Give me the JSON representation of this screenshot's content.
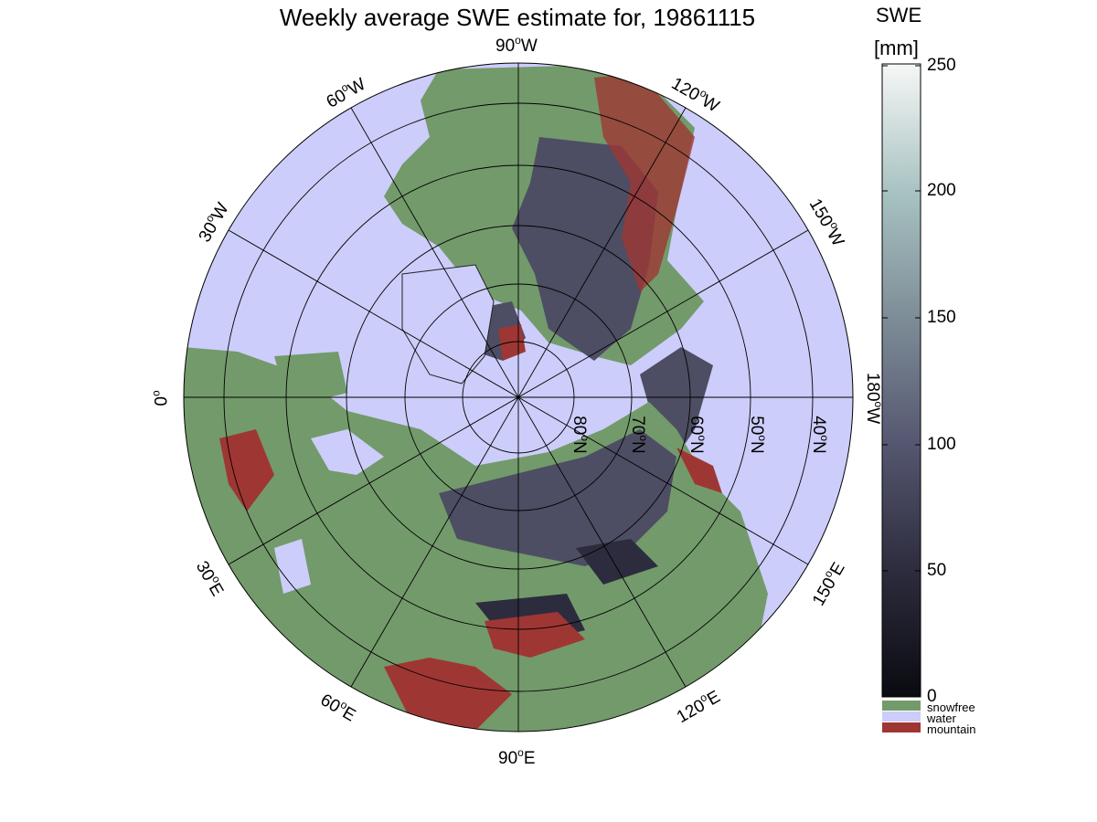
{
  "title": "Weekly average SWE estimate for, 19861115",
  "colorbar": {
    "label_line1": "SWE",
    "label_line2": "[mm]",
    "ticks": [
      "0",
      "50",
      "100",
      "150",
      "200",
      "250"
    ],
    "categories": [
      {
        "label": "snowfree",
        "color": "#739a6b"
      },
      {
        "label": "water",
        "color": "#cccdfa"
      },
      {
        "label": "mountain",
        "color": "#9e3733"
      }
    ],
    "scale_colors": [
      "#0a0a10",
      "#2d2c3e",
      "#555770",
      "#7e8d98",
      "#a9c3c2",
      "#f5f7f6"
    ]
  },
  "map": {
    "projection": "north polar stereographic",
    "longitude_labels": [
      "0",
      "30",
      "60",
      "90",
      "120",
      "150",
      "180",
      "150",
      "120",
      "90",
      "60",
      "30"
    ],
    "longitude_suffixes": [
      "",
      "E",
      "E",
      "E",
      "E",
      "E",
      "W",
      "W",
      "W",
      "W",
      "W",
      "W"
    ],
    "latitude_labels": [
      "80",
      "70",
      "60",
      "50",
      "40"
    ],
    "latitude_suffix": "N",
    "degree_mark": "o",
    "colors": {
      "ocean": "#cccdfa",
      "snowfree": "#739a6b",
      "mountain": "#9e3733",
      "snow": "#4d4e63"
    }
  }
}
